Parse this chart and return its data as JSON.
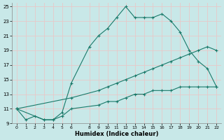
{
  "line1_x": [
    0,
    1,
    2,
    3,
    4,
    5,
    6,
    8,
    9,
    10,
    11,
    12,
    13,
    14,
    15,
    16,
    17,
    18,
    19,
    20,
    21,
    22
  ],
  "line1_y": [
    11,
    9.5,
    10,
    9.5,
    9.5,
    10.5,
    14.5,
    19.5,
    21,
    22,
    23.5,
    25,
    23.5,
    23.5,
    23.5,
    24,
    23,
    21.5,
    19,
    17.5,
    16.5,
    14
  ],
  "line2_x": [
    0,
    6,
    9,
    10,
    11,
    12,
    13,
    14,
    15,
    16,
    17,
    18,
    19,
    20,
    21,
    22
  ],
  "line2_y": [
    11,
    12.5,
    13.5,
    14,
    14.5,
    15,
    15.5,
    16,
    16.5,
    17,
    17.5,
    18,
    18.5,
    19,
    19.5,
    19
  ],
  "line3_x": [
    0,
    3,
    4,
    5,
    6,
    9,
    10,
    11,
    12,
    13,
    14,
    15,
    16,
    17,
    18,
    19,
    20,
    21,
    22
  ],
  "line3_y": [
    11,
    9.5,
    9.5,
    10,
    11,
    11.5,
    12,
    12,
    12.5,
    13,
    13,
    13.5,
    13.5,
    13.5,
    14,
    14,
    14,
    14,
    14
  ],
  "color": "#1a7a6a",
  "bg_color": "#c8e8e8",
  "grid_color": "#b8d8d8",
  "xlabel": "Humidex (Indice chaleur)",
  "xlim": [
    -0.5,
    22.5
  ],
  "ylim": [
    9,
    25.5
  ],
  "xticks": [
    0,
    1,
    2,
    3,
    4,
    5,
    6,
    8,
    9,
    10,
    11,
    12,
    13,
    14,
    15,
    16,
    17,
    18,
    19,
    20,
    21,
    22
  ],
  "yticks": [
    9,
    11,
    13,
    15,
    17,
    19,
    21,
    23,
    25
  ]
}
